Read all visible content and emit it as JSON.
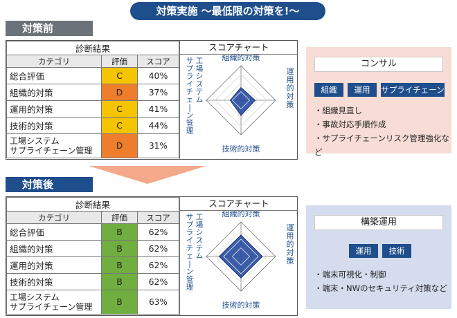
{
  "title": "対策実施 ～最低限の対策を!～",
  "before": {
    "label": "対策前",
    "table_header": "診断結果",
    "columns": [
      "カテゴリ",
      "評価",
      "スコア"
    ],
    "rows": [
      {
        "category": "総合評価",
        "grade": "C",
        "score": "40%"
      },
      {
        "category": "組織的対策",
        "grade": "D",
        "score": "37%"
      },
      {
        "category": "運用的対策",
        "grade": "C",
        "score": "41%"
      },
      {
        "category": "技術的対策",
        "grade": "C",
        "score": "44%"
      },
      {
        "category": "工場システム\nサプライチェーン管理",
        "grade": "D",
        "score": "31%"
      }
    ],
    "chart_title": "スコアチャート",
    "chart_axes": {
      "top": "組織的対策",
      "right": "運用的対策",
      "bottom": "技術的対策",
      "left": "工場システム\nサプライチェーン管理"
    },
    "box": {
      "title": "コンサル",
      "tags": [
        "組織",
        "運用",
        "サプライチェーン"
      ],
      "bullets": [
        "組織見直し",
        "事故対応手順作成",
        "サプライチェーンリスク管理強化など"
      ]
    }
  },
  "after": {
    "label": "対策後",
    "table_header": "診断結果",
    "columns": [
      "カテゴリ",
      "評価",
      "スコア"
    ],
    "rows": [
      {
        "category": "総合評価",
        "grade": "B",
        "score": "62%"
      },
      {
        "category": "組織的対策",
        "grade": "B",
        "score": "62%"
      },
      {
        "category": "運用的対策",
        "grade": "B",
        "score": "62%"
      },
      {
        "category": "技術的対策",
        "grade": "B",
        "score": "62%"
      },
      {
        "category": "工場システム\nサプライチェーン管理",
        "grade": "B",
        "score": "63%"
      }
    ],
    "chart_title": "スコアチャート",
    "chart_axes": {
      "top": "組織的対策",
      "right": "運用的対策",
      "bottom": "技術的対策",
      "left": "工場システム\nサプライチェーン管理"
    },
    "box": {
      "title": "構築運用",
      "tags": [
        "運用",
        "技術"
      ],
      "bullets": [
        "端末可視化・制御",
        "端末・NWのセキュリティ対策など"
      ]
    }
  },
  "colors": {
    "navy": "#1f4e8c",
    "grade_B": "#6fae3f",
    "grade_C": "#f5c400",
    "grade_D": "#ee7d2c"
  },
  "chart_data": [
    {
      "type": "radar",
      "title": "スコアチャート",
      "axes": [
        "組織的対策",
        "運用的対策",
        "技術的対策",
        "工場システム サプライチェーン管理"
      ],
      "values": [
        37,
        41,
        44,
        31
      ],
      "max": 100
    },
    {
      "type": "radar",
      "title": "スコアチャート",
      "axes": [
        "組織的対策",
        "運用的対策",
        "技術的対策",
        "工場システム サプライチェーン管理"
      ],
      "values": [
        62,
        62,
        62,
        63
      ],
      "max": 100
    }
  ]
}
